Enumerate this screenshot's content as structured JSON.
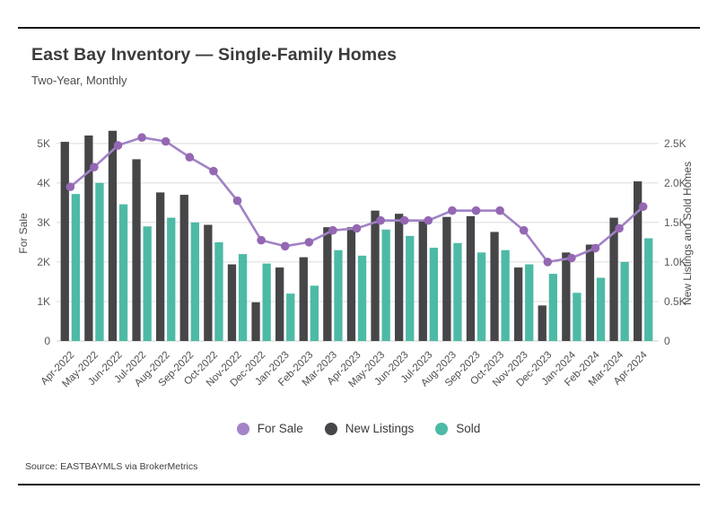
{
  "page": {
    "title": "East Bay Inventory — Single-Family Homes",
    "subtitle": "Two-Year, Monthly",
    "source": "Source: EASTBAYMLS via BrokerMetrics"
  },
  "legend": {
    "items": [
      {
        "label": "For Sale",
        "color": "#a384c7"
      },
      {
        "label": "New Listings",
        "color": "#464649"
      },
      {
        "label": "Sold",
        "color": "#4dbaa6"
      }
    ]
  },
  "colors": {
    "new_listings_bar": "#464649",
    "sold_bar": "#4dbaa6",
    "for_sale_line": "#a182c6",
    "for_sale_marker": "#9467b3",
    "gridline": "#dcdcdc",
    "baseline": "#cfcfcf"
  },
  "chart_data": {
    "type": "bar",
    "subtype": "grouped bars with overlay line, dual y-axes",
    "title": "East Bay Inventory — Single-Family Homes",
    "subtitle": "Two-Year, Monthly",
    "grid": true,
    "legend_position": "bottom",
    "categories": [
      "Apr-2022",
      "May-2022",
      "Jun-2022",
      "Jul-2022",
      "Aug-2022",
      "Sep-2022",
      "Oct-2022",
      "Nov-2022",
      "Dec-2022",
      "Jan-2023",
      "Feb-2023",
      "Mar-2023",
      "Apr-2023",
      "May-2023",
      "Jun-2023",
      "Jul-2023",
      "Aug-2023",
      "Sep-2023",
      "Oct-2023",
      "Nov-2023",
      "Dec-2023",
      "Jan-2024",
      "Feb-2024",
      "Mar-2024",
      "Apr-2024"
    ],
    "left_axis": {
      "title": "For Sale",
      "ticks": [
        "0",
        "1K",
        "2K",
        "3K",
        "4K",
        "5K"
      ],
      "tick_values": [
        0,
        1000,
        2000,
        3000,
        4000,
        5000
      ],
      "max": 5450
    },
    "right_axis": {
      "title": "New Listings and Sold Homes",
      "ticks": [
        "0",
        "0.5K",
        "1.0K",
        "1.5K",
        "2.0K",
        "2.5K"
      ],
      "tick_values": [
        0,
        500,
        1000,
        1500,
        2000,
        2500
      ],
      "max": 2725
    },
    "series": [
      {
        "name": "For Sale",
        "type": "line",
        "axis": "left",
        "values": [
          3900,
          4400,
          4950,
          5150,
          5050,
          4650,
          4300,
          3550,
          2550,
          2400,
          2500,
          2800,
          2850,
          3050,
          3050,
          3050,
          3300,
          3300,
          3300,
          2800,
          2000,
          2100,
          2350,
          2850,
          3400
        ]
      },
      {
        "name": "New Listings",
        "type": "bar",
        "axis": "right",
        "values": [
          2520,
          2600,
          2660,
          2300,
          1880,
          1850,
          1470,
          970,
          490,
          930,
          1060,
          1440,
          1440,
          1650,
          1610,
          1530,
          1570,
          1580,
          1380,
          930,
          450,
          1120,
          1220,
          1560,
          2020
        ]
      },
      {
        "name": "Sold",
        "type": "bar",
        "axis": "right",
        "values": [
          1860,
          2000,
          1730,
          1450,
          1560,
          1500,
          1250,
          1100,
          980,
          600,
          700,
          1150,
          1080,
          1410,
          1330,
          1180,
          1240,
          1120,
          1150,
          970,
          850,
          610,
          800,
          1000,
          1300
        ]
      }
    ]
  }
}
